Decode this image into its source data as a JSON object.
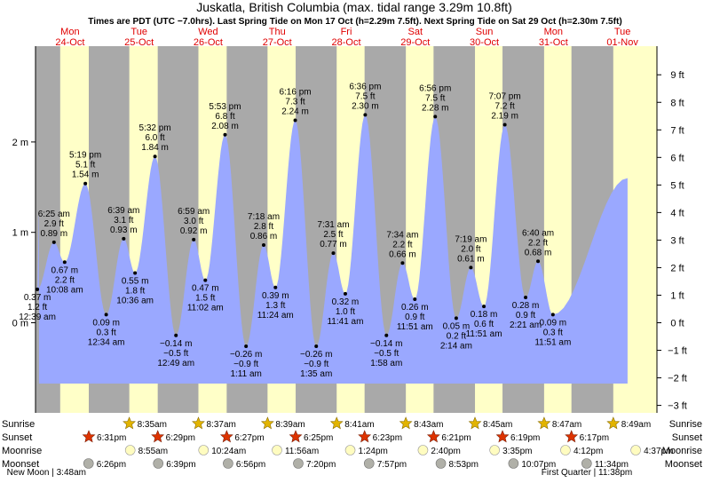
{
  "chart_data": {
    "type": "area",
    "title": "Juskatla, British Columbia (max. tidal range 3.29m 10.8ft)",
    "subtitle": "Times are PDT (UTC −7.0hrs). Last Spring Tide on Mon 17 Oct (h=2.29m 7.5ft). Next Spring Tide on Sat 29 Oct (h=2.30m 7.5ft)",
    "ylim_m": [
      -0.67,
      2.85
    ],
    "left_axis_unit": "m",
    "left_ticks": [
      {
        "value": 2,
        "label": "2 m"
      },
      {
        "value": 1,
        "label": "1 m"
      },
      {
        "value": 0,
        "label": "0 m"
      }
    ],
    "right_ticks": [
      {
        "value": 9,
        "label": "9 ft"
      },
      {
        "value": 8,
        "label": "8 ft"
      },
      {
        "value": 7,
        "label": "7 ft"
      },
      {
        "value": 6,
        "label": "6 ft"
      },
      {
        "value": 5,
        "label": "5 ft"
      },
      {
        "value": 4,
        "label": "4 ft"
      },
      {
        "value": 3,
        "label": "3 ft"
      },
      {
        "value": 2,
        "label": "2 ft"
      },
      {
        "value": 1,
        "label": "1 ft"
      },
      {
        "value": 0,
        "label": "0 ft"
      },
      {
        "value": -1,
        "label": "−1 ft"
      },
      {
        "value": -2,
        "label": "−2 ft"
      },
      {
        "value": -3,
        "label": "−3 ft"
      }
    ],
    "days": [
      {
        "dow": "Mon",
        "date": "24-Oct"
      },
      {
        "dow": "Tue",
        "date": "25-Oct"
      },
      {
        "dow": "Wed",
        "date": "26-Oct"
      },
      {
        "dow": "Thu",
        "date": "27-Oct"
      },
      {
        "dow": "Fri",
        "date": "28-Oct"
      },
      {
        "dow": "Sat",
        "date": "29-Oct"
      },
      {
        "dow": "Sun",
        "date": "30-Oct"
      },
      {
        "dow": "Mon",
        "date": "31-Oct"
      },
      {
        "dow": "Tue",
        "date": "01-Nov"
      }
    ],
    "time_range_hours": [
      0,
      216
    ],
    "nights": [
      [
        0,
        8.58
      ],
      [
        18.52,
        32.6
      ],
      [
        42.48,
        56.62
      ],
      [
        66.45,
        80.65
      ],
      [
        90.42,
        104.68
      ],
      [
        114.38,
        128.72
      ],
      [
        138.35,
        152.75
      ],
      [
        162.32,
        176.78
      ],
      [
        186.28,
        200.82
      ]
    ],
    "tide_range_hours": [
      1.2,
      205.8
    ],
    "tide_start_m": 1.2,
    "tide_end_m": 1.6,
    "tides": [
      {
        "t": 0.65,
        "h": 0.37,
        "type": "low",
        "time": "12:39 am",
        "ft": "1.2 ft",
        "m": "0.37 m"
      },
      {
        "t": 6.42,
        "h": 0.89,
        "type": "high",
        "time": "6:25 am",
        "ft": "2.9 ft",
        "m": "0.89 m"
      },
      {
        "t": 10.13,
        "h": 0.67,
        "type": "low",
        "time": "10:08 am",
        "ft": "2.2 ft",
        "m": "0.67 m"
      },
      {
        "t": 17.32,
        "h": 1.54,
        "type": "high",
        "time": "5:19 pm",
        "ft": "5.1 ft",
        "m": "1.54 m"
      },
      {
        "t": 24.57,
        "h": 0.09,
        "type": "low",
        "time": "12:34 am",
        "ft": "0.3 ft",
        "m": "0.09 m"
      },
      {
        "t": 30.65,
        "h": 0.93,
        "type": "high",
        "time": "6:39 am",
        "ft": "3.1 ft",
        "m": "0.93 m"
      },
      {
        "t": 34.6,
        "h": 0.55,
        "type": "low",
        "time": "10:36 am",
        "ft": "1.8 ft",
        "m": "0.55 m"
      },
      {
        "t": 41.53,
        "h": 1.84,
        "type": "high",
        "time": "5:32 pm",
        "ft": "6.0 ft",
        "m": "1.84 m"
      },
      {
        "t": 48.82,
        "h": -0.14,
        "type": "low",
        "time": "12:49 am",
        "ft": "−0.5 ft",
        "m": "−0.14 m"
      },
      {
        "t": 54.98,
        "h": 0.92,
        "type": "high",
        "time": "6:59 am",
        "ft": "3.0 ft",
        "m": "0.92 m"
      },
      {
        "t": 59.03,
        "h": 0.47,
        "type": "low",
        "time": "11:02 am",
        "ft": "1.5 ft",
        "m": "0.47 m"
      },
      {
        "t": 65.88,
        "h": 2.08,
        "type": "high",
        "time": "5:53 pm",
        "ft": "6.8 ft",
        "m": "2.08 m"
      },
      {
        "t": 73.18,
        "h": -0.26,
        "type": "low",
        "time": "1:11 am",
        "ft": "−0.9 ft",
        "m": "−0.26 m"
      },
      {
        "t": 79.3,
        "h": 0.86,
        "type": "high",
        "time": "7:18 am",
        "ft": "2.8 ft",
        "m": "0.86 m"
      },
      {
        "t": 83.4,
        "h": 0.39,
        "type": "low",
        "time": "11:24 am",
        "ft": "1.3 ft",
        "m": "0.39 m"
      },
      {
        "t": 90.27,
        "h": 2.24,
        "type": "high",
        "time": "6:16 pm",
        "ft": "7.3 ft",
        "m": "2.24 m"
      },
      {
        "t": 97.58,
        "h": -0.26,
        "type": "low",
        "time": "1:35 am",
        "ft": "−0.9 ft",
        "m": "−0.26 m"
      },
      {
        "t": 103.52,
        "h": 0.77,
        "type": "high",
        "time": "7:31 am",
        "ft": "2.5 ft",
        "m": "0.77 m"
      },
      {
        "t": 107.68,
        "h": 0.32,
        "type": "low",
        "time": "11:41 am",
        "ft": "1.0 ft",
        "m": "0.32 m"
      },
      {
        "t": 114.6,
        "h": 2.3,
        "type": "high",
        "time": "6:36 pm",
        "ft": "7.5 ft",
        "m": "2.30 m"
      },
      {
        "t": 121.97,
        "h": -0.14,
        "type": "low",
        "time": "1:58 am",
        "ft": "−0.5 ft",
        "m": "−0.14 m"
      },
      {
        "t": 127.57,
        "h": 0.66,
        "type": "high",
        "time": "7:34 am",
        "ft": "2.2 ft",
        "m": "0.66 m"
      },
      {
        "t": 131.85,
        "h": 0.26,
        "type": "low",
        "time": "11:51 am",
        "ft": "0.9 ft",
        "m": "0.26 m"
      },
      {
        "t": 138.93,
        "h": 2.28,
        "type": "high",
        "time": "6:56 pm",
        "ft": "7.5 ft",
        "m": "2.28 m"
      },
      {
        "t": 146.23,
        "h": 0.05,
        "type": "low",
        "time": "2:14 am",
        "ft": "0.2 ft",
        "m": "0.05 m"
      },
      {
        "t": 151.32,
        "h": 0.61,
        "type": "high",
        "time": "7:19 am",
        "ft": "2.0 ft",
        "m": "0.61 m"
      },
      {
        "t": 155.85,
        "h": 0.18,
        "type": "low",
        "time": "11:51 am",
        "ft": "0.6 ft",
        "m": "0.18 m"
      },
      {
        "t": 163.12,
        "h": 2.19,
        "type": "high",
        "time": "7:07 pm",
        "ft": "7.2 ft",
        "m": "2.19 m"
      },
      {
        "t": 170.35,
        "h": 0.28,
        "type": "low",
        "time": "2:21 am",
        "ft": "0.9 ft",
        "m": "0.28 m"
      },
      {
        "t": 174.67,
        "h": 0.68,
        "type": "high",
        "time": "6:40 am",
        "ft": "2.2 ft",
        "m": "0.68 m"
      },
      {
        "t": 179.85,
        "h": 0.09,
        "type": "low",
        "time": "11:51 am",
        "ft": "0.3 ft",
        "m": "0.09 m"
      }
    ],
    "astro_labels": {
      "sunrise": "Sunrise",
      "sunset": "Sunset",
      "moonrise": "Moonrise",
      "moonset": "Moonset"
    },
    "sunrise": [
      {
        "t": 32.58,
        "time": "8:35am"
      },
      {
        "t": 56.62,
        "time": "8:37am"
      },
      {
        "t": 80.65,
        "time": "8:39am"
      },
      {
        "t": 104.68,
        "time": "8:41am"
      },
      {
        "t": 128.72,
        "time": "8:43am"
      },
      {
        "t": 152.75,
        "time": "8:45am"
      },
      {
        "t": 176.78,
        "time": "8:47am"
      },
      {
        "t": 200.82,
        "time": "8:49am"
      }
    ],
    "sunset": [
      {
        "t": 18.52,
        "time": "6:31pm"
      },
      {
        "t": 42.48,
        "time": "6:29pm"
      },
      {
        "t": 66.45,
        "time": "6:27pm"
      },
      {
        "t": 90.42,
        "time": "6:25pm"
      },
      {
        "t": 114.38,
        "time": "6:23pm"
      },
      {
        "t": 138.35,
        "time": "6:21pm"
      },
      {
        "t": 162.32,
        "time": "6:19pm"
      },
      {
        "t": 186.28,
        "time": "6:17pm"
      }
    ],
    "moonrise": [
      {
        "t": 32.92,
        "time": "8:55am"
      },
      {
        "t": 58.4,
        "time": "10:24am"
      },
      {
        "t": 83.93,
        "time": "11:56am"
      },
      {
        "t": 109.4,
        "time": "1:24pm"
      },
      {
        "t": 134.67,
        "time": "2:40pm"
      },
      {
        "t": 159.58,
        "time": "3:35pm"
      },
      {
        "t": 184.2,
        "time": "4:12pm"
      },
      {
        "t": 208.62,
        "time": "4:37pm"
      }
    ],
    "moonset": [
      {
        "t": 18.43,
        "time": "6:26pm"
      },
      {
        "t": 42.65,
        "time": "6:39pm"
      },
      {
        "t": 66.93,
        "time": "6:56pm"
      },
      {
        "t": 91.33,
        "time": "7:20pm"
      },
      {
        "t": 115.95,
        "time": "7:57pm"
      },
      {
        "t": 140.88,
        "time": "8:53pm"
      },
      {
        "t": 166.12,
        "time": "10:07pm"
      },
      {
        "t": 191.57,
        "time": "11:34pm"
      }
    ],
    "moon_phases": [
      {
        "t": 3.8,
        "label": "New Moon | 3:48am"
      },
      {
        "t": 191.63,
        "label": "First Quarter | 11:38pm"
      }
    ],
    "colors": {
      "day": "#ffffc8",
      "night": "#a9a9a9",
      "water": "#9aa8ff",
      "red_day": "#e00000",
      "sun": "#e2b400",
      "sunset_star": "#dd3300",
      "moon_rise": "#fffcc0",
      "moon_set": "#b0b0a8"
    }
  }
}
